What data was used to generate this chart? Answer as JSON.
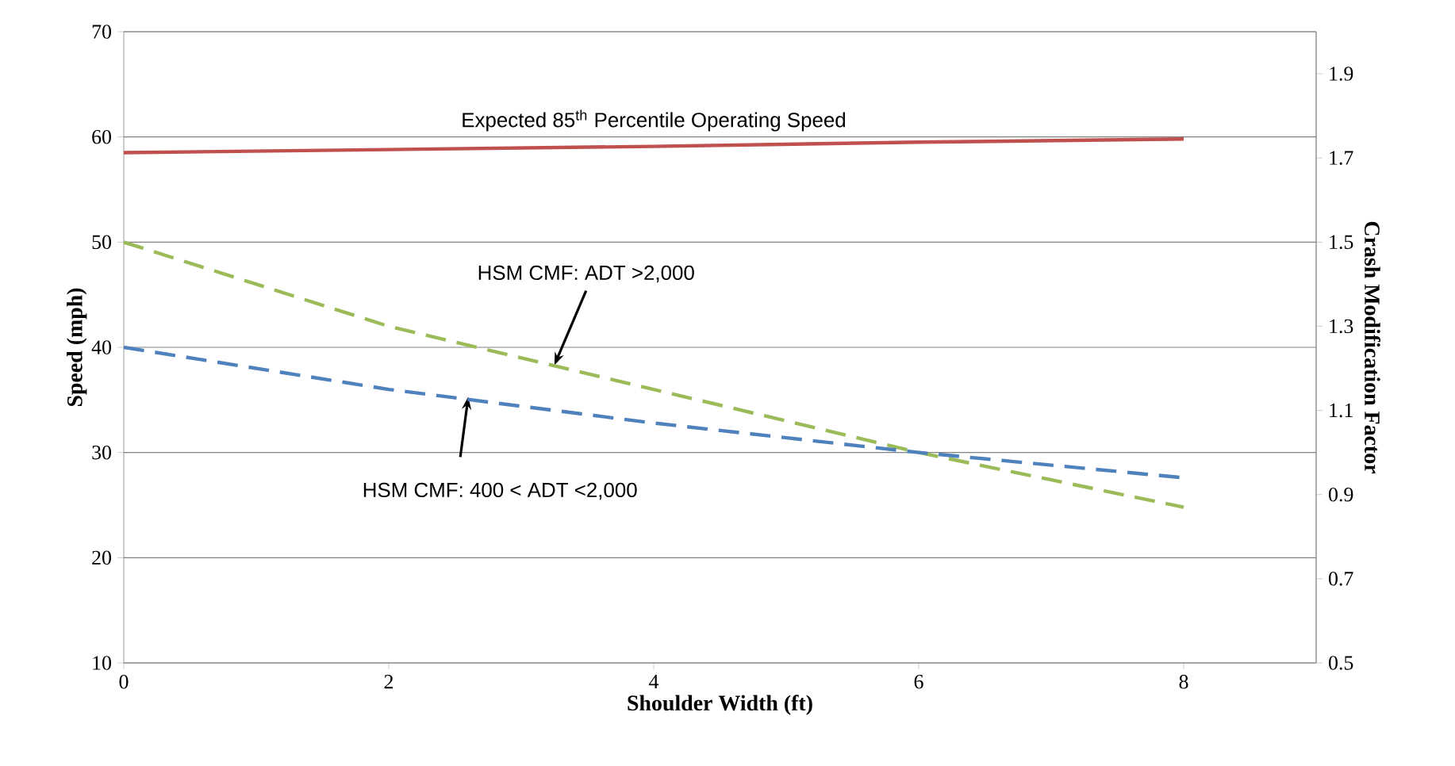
{
  "chart_data": {
    "type": "line",
    "xlabel": "Shoulder Width (ft)",
    "ylabel": "Speed (mph)",
    "y2label": "Crash Modification Factor",
    "x": [
      0,
      2,
      4,
      6,
      8
    ],
    "series": [
      {
        "color": "#c0504d",
        "values": [
          58.5,
          58.8,
          59.1,
          59.5,
          59.8
        ],
        "line_style": "solid"
      },
      {
        "color": "#9bbb59",
        "values": [
          1.5,
          1.3,
          1.15,
          1.0,
          0.87
        ],
        "axis": "y2",
        "line_style": "dashed"
      },
      {
        "color": "#4f81bd",
        "values": [
          1.25,
          1.15,
          1.07,
          1.0,
          0.94
        ],
        "axis": "y2",
        "line_style": "dashed"
      }
    ],
    "xlim": [
      0,
      9
    ],
    "xticks": [
      0,
      2,
      4,
      6,
      8
    ],
    "ylim": [
      10,
      70
    ],
    "yticks": [
      10,
      20,
      30,
      40,
      50,
      60,
      70
    ],
    "y2lim": [
      0.5,
      2.0
    ],
    "y2ticks": [
      0.5,
      0.7,
      0.9,
      1.1,
      1.3,
      1.5,
      1.7,
      1.9
    ],
    "grid": "y",
    "marker": "none",
    "annotations": [
      {
        "text": "Expected 85$^{th}$ Percentile Operating Speed",
        "x": 4,
        "y": 59.1
      },
      {
        "text": "HSM CMF: ADT >2,000",
        "x": 3.25,
        "y": 38.3
      },
      {
        "text": "HSM CMF: 400 < ADT <2,000",
        "x": 2.6,
        "y": 35.3
      }
    ]
  }
}
